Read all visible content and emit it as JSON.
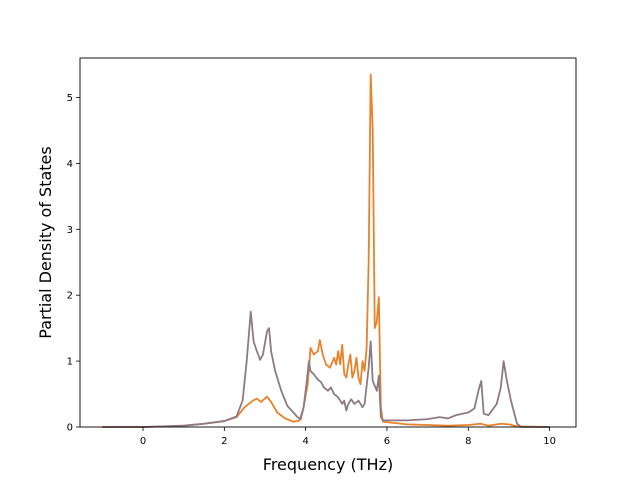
{
  "chart_data": {
    "type": "line",
    "title": "",
    "xlabel": "Frequency (THz)",
    "ylabel": "Partial Density of States",
    "xlim": [
      -1.55,
      10.65
    ],
    "ylim": [
      0,
      5.6
    ],
    "xticks": [
      0,
      2,
      4,
      6,
      8,
      10
    ],
    "yticks": [
      0,
      1,
      2,
      3,
      4,
      5
    ],
    "grid": false,
    "legend": "none",
    "series": [
      {
        "color": "#e8822a",
        "points": [
          [
            -1.0,
            0
          ],
          [
            0,
            0
          ],
          [
            0.5,
            0.01
          ],
          [
            1.0,
            0.02
          ],
          [
            1.5,
            0.05
          ],
          [
            2.0,
            0.09
          ],
          [
            2.3,
            0.15
          ],
          [
            2.5,
            0.3
          ],
          [
            2.7,
            0.4
          ],
          [
            2.8,
            0.43
          ],
          [
            2.9,
            0.38
          ],
          [
            3.05,
            0.46
          ],
          [
            3.15,
            0.38
          ],
          [
            3.3,
            0.22
          ],
          [
            3.5,
            0.13
          ],
          [
            3.7,
            0.08
          ],
          [
            3.85,
            0.1
          ],
          [
            3.95,
            0.3
          ],
          [
            4.05,
            0.65
          ],
          [
            4.12,
            1.2
          ],
          [
            4.2,
            1.1
          ],
          [
            4.3,
            1.15
          ],
          [
            4.35,
            1.32
          ],
          [
            4.42,
            1.1
          ],
          [
            4.5,
            0.95
          ],
          [
            4.6,
            0.9
          ],
          [
            4.7,
            1.05
          ],
          [
            4.75,
            0.95
          ],
          [
            4.8,
            1.15
          ],
          [
            4.85,
            0.95
          ],
          [
            4.9,
            1.25
          ],
          [
            4.95,
            0.8
          ],
          [
            5.0,
            0.75
          ],
          [
            5.05,
            0.95
          ],
          [
            5.1,
            1.1
          ],
          [
            5.15,
            0.75
          ],
          [
            5.2,
            0.85
          ],
          [
            5.25,
            1.05
          ],
          [
            5.3,
            0.75
          ],
          [
            5.35,
            0.65
          ],
          [
            5.4,
            1.0
          ],
          [
            5.45,
            0.85
          ],
          [
            5.5,
            1.2
          ],
          [
            5.55,
            2.5
          ],
          [
            5.6,
            5.35
          ],
          [
            5.65,
            4.5
          ],
          [
            5.7,
            1.5
          ],
          [
            5.75,
            1.6
          ],
          [
            5.8,
            1.97
          ],
          [
            5.85,
            0.3
          ],
          [
            5.9,
            0.08
          ],
          [
            6.5,
            0.04
          ],
          [
            7.0,
            0.03
          ],
          [
            7.5,
            0.02
          ],
          [
            8.0,
            0.03
          ],
          [
            8.3,
            0.05
          ],
          [
            8.5,
            0.02
          ],
          [
            8.8,
            0.05
          ],
          [
            9.0,
            0.04
          ],
          [
            9.2,
            0.01
          ],
          [
            10.0,
            0
          ]
        ]
      },
      {
        "color": "#8c7b84",
        "points": [
          [
            -1.0,
            0
          ],
          [
            0,
            0
          ],
          [
            0.5,
            0.01
          ],
          [
            1.0,
            0.02
          ],
          [
            1.5,
            0.05
          ],
          [
            2.0,
            0.09
          ],
          [
            2.3,
            0.16
          ],
          [
            2.45,
            0.4
          ],
          [
            2.55,
            1.0
          ],
          [
            2.65,
            1.75
          ],
          [
            2.72,
            1.3
          ],
          [
            2.8,
            1.15
          ],
          [
            2.88,
            1.02
          ],
          [
            2.95,
            1.1
          ],
          [
            3.05,
            1.45
          ],
          [
            3.1,
            1.5
          ],
          [
            3.15,
            1.15
          ],
          [
            3.25,
            0.85
          ],
          [
            3.4,
            0.55
          ],
          [
            3.55,
            0.32
          ],
          [
            3.7,
            0.22
          ],
          [
            3.8,
            0.15
          ],
          [
            3.88,
            0.12
          ],
          [
            3.95,
            0.3
          ],
          [
            4.02,
            0.65
          ],
          [
            4.08,
            1.0
          ],
          [
            4.12,
            0.85
          ],
          [
            4.2,
            0.8
          ],
          [
            4.3,
            0.72
          ],
          [
            4.38,
            0.68
          ],
          [
            4.45,
            0.6
          ],
          [
            4.55,
            0.55
          ],
          [
            4.62,
            0.6
          ],
          [
            4.7,
            0.5
          ],
          [
            4.8,
            0.45
          ],
          [
            4.9,
            0.35
          ],
          [
            4.95,
            0.4
          ],
          [
            5.0,
            0.25
          ],
          [
            5.05,
            0.35
          ],
          [
            5.12,
            0.42
          ],
          [
            5.2,
            0.35
          ],
          [
            5.3,
            0.4
          ],
          [
            5.4,
            0.3
          ],
          [
            5.45,
            0.35
          ],
          [
            5.55,
            0.9
          ],
          [
            5.6,
            1.3
          ],
          [
            5.65,
            0.7
          ],
          [
            5.75,
            0.55
          ],
          [
            5.8,
            0.78
          ],
          [
            5.85,
            0.15
          ],
          [
            5.9,
            0.1
          ],
          [
            6.5,
            0.1
          ],
          [
            7.0,
            0.12
          ],
          [
            7.3,
            0.15
          ],
          [
            7.5,
            0.13
          ],
          [
            7.7,
            0.18
          ],
          [
            8.0,
            0.22
          ],
          [
            8.15,
            0.28
          ],
          [
            8.25,
            0.55
          ],
          [
            8.32,
            0.7
          ],
          [
            8.38,
            0.2
          ],
          [
            8.5,
            0.18
          ],
          [
            8.7,
            0.35
          ],
          [
            8.8,
            0.6
          ],
          [
            8.87,
            1.0
          ],
          [
            8.95,
            0.7
          ],
          [
            9.05,
            0.4
          ],
          [
            9.2,
            0.05
          ],
          [
            9.3,
            0
          ],
          [
            10.0,
            0
          ]
        ]
      }
    ]
  }
}
